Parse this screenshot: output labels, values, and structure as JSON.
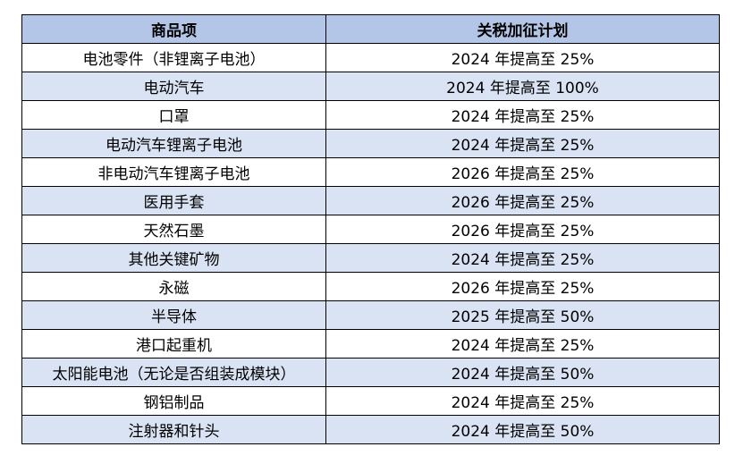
{
  "colors": {
    "header_bg": "#b4c6e7",
    "alt_row_bg": "#dae3f3",
    "row_bg": "#ffffff",
    "border": "#000000"
  },
  "table": {
    "headers": [
      "商品项",
      "关税加征计划"
    ],
    "rows": [
      [
        "电池零件（非锂离子电池）",
        "2024 年提高至 25%"
      ],
      [
        "电动汽车",
        "2024 年提高至 100%"
      ],
      [
        "口罩",
        "2024 年提高至 25%"
      ],
      [
        "电动汽车锂离子电池",
        "2024 年提高至 25%"
      ],
      [
        "非电动汽车锂离子电池",
        "2026 年提高至 25%"
      ],
      [
        "医用手套",
        "2026 年提高至 25%"
      ],
      [
        "天然石墨",
        "2026 年提高至 25%"
      ],
      [
        "其他关键矿物",
        "2024 年提高至 25%"
      ],
      [
        "永磁",
        "2026 年提高至 25%"
      ],
      [
        "半导体",
        "2025 年提高至 50%"
      ],
      [
        "港口起重机",
        "2024 年提高至 25%"
      ],
      [
        "太阳能电池（无论是否组装成模块）",
        "2024 年提高至 50%"
      ],
      [
        "钢铝制品",
        "2024 年提高至 25%"
      ],
      [
        "注射器和针头",
        "2024 年提高至 50%"
      ]
    ]
  }
}
